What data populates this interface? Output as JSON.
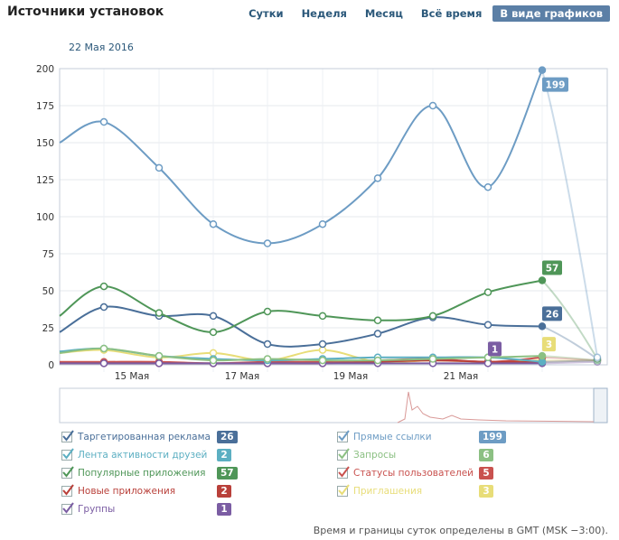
{
  "header": {
    "title": "Источники установок",
    "tabs": [
      {
        "label": "Сутки",
        "active": false
      },
      {
        "label": "Неделя",
        "active": false
      },
      {
        "label": "Месяц",
        "active": false
      },
      {
        "label": "Всё время",
        "active": false
      },
      {
        "label": "В виде графиков",
        "active": true
      }
    ]
  },
  "chart_data": {
    "type": "line",
    "title": "",
    "date_label": "22 Мая 2016",
    "ylim": [
      0,
      200
    ],
    "yticks": [
      "0",
      "25",
      "50",
      "75",
      "100",
      "125",
      "150",
      "175",
      "200"
    ],
    "xtick_labels": [
      "15 Мая",
      "17 Мая",
      "19 Мая",
      "21 Мая"
    ],
    "x": [
      "14 Мая",
      "15 Мая",
      "16 Мая",
      "17 Мая",
      "18 Мая",
      "19 Мая",
      "20 Мая",
      "21 Мая",
      "22 Мая",
      "23 Мая"
    ],
    "series": [
      {
        "name": "Прямые ссылки",
        "color": "#6d9cc4",
        "values": [
          164,
          133,
          95,
          82,
          95,
          126,
          175,
          120,
          199,
          5
        ],
        "label": "199"
      },
      {
        "name": "Популярные приложения",
        "color": "#4f9658",
        "values": [
          53,
          35,
          22,
          36,
          33,
          30,
          33,
          49,
          57,
          4
        ],
        "label": "57"
      },
      {
        "name": "Таргетированная реклама",
        "color": "#4a6f99",
        "values": [
          39,
          33,
          33,
          14,
          14,
          21,
          32,
          27,
          26,
          4
        ],
        "label": "26"
      },
      {
        "name": "Лента активности друзей",
        "color": "#5cafc2",
        "values": [
          11,
          6,
          4,
          3,
          4,
          5,
          5,
          5,
          2,
          3
        ],
        "label": "2"
      },
      {
        "name": "Запросы",
        "color": "#8cc083",
        "values": [
          11,
          6,
          3,
          4,
          3,
          3,
          4,
          5,
          6,
          3
        ],
        "label": "6"
      },
      {
        "name": "Приглашения",
        "color": "#e8dd78",
        "values": [
          10,
          5,
          8,
          3,
          10,
          2,
          3,
          2,
          3,
          3
        ],
        "label": "3"
      },
      {
        "name": "Статусы пользователей",
        "color": "#c9524f",
        "values": [
          2,
          2,
          1,
          2,
          2,
          3,
          4,
          2,
          5,
          3
        ],
        "label": "5"
      },
      {
        "name": "Новые приложения",
        "color": "#b9403a",
        "values": [
          1,
          1,
          1,
          1,
          1,
          2,
          3,
          2,
          2,
          3
        ],
        "label": "2"
      },
      {
        "name": "Группы",
        "color": "#7b5da3",
        "values": [
          1,
          1,
          1,
          1,
          1,
          1,
          1,
          1,
          1,
          2
        ],
        "label": "1"
      }
    ],
    "legend_placement": "bottom"
  },
  "legend": {
    "left": [
      {
        "label": "Таргетированная реклама",
        "value": "26",
        "color": "#4a6f99",
        "check": "#4a6f99"
      },
      {
        "label": "Лента активности друзей",
        "value": "2",
        "color": "#5cafc2",
        "check": "#5cafc2"
      },
      {
        "label": "Популярные приложения",
        "value": "57",
        "color": "#4f9658",
        "check": "#4f9658"
      },
      {
        "label": "Новые приложения",
        "value": "2",
        "color": "#b9403a",
        "check": "#b9403a"
      },
      {
        "label": "Группы",
        "value": "1",
        "color": "#7b5da3",
        "check": "#7b5da3"
      }
    ],
    "right": [
      {
        "label": "Прямые ссылки",
        "value": "199",
        "color": "#6d9cc4",
        "check": "#6d9cc4"
      },
      {
        "label": "Запросы",
        "value": "6",
        "color": "#8cc083",
        "check": "#8cc083"
      },
      {
        "label": "Статусы пользователей",
        "value": "5",
        "color": "#c9524f",
        "check": "#c9524f"
      },
      {
        "label": "Приглашения",
        "value": "3",
        "color": "#e8dd78",
        "check": "#e8dd78"
      }
    ]
  },
  "footer": "Время и границы суток определены в GMT (MSK −3:00)."
}
